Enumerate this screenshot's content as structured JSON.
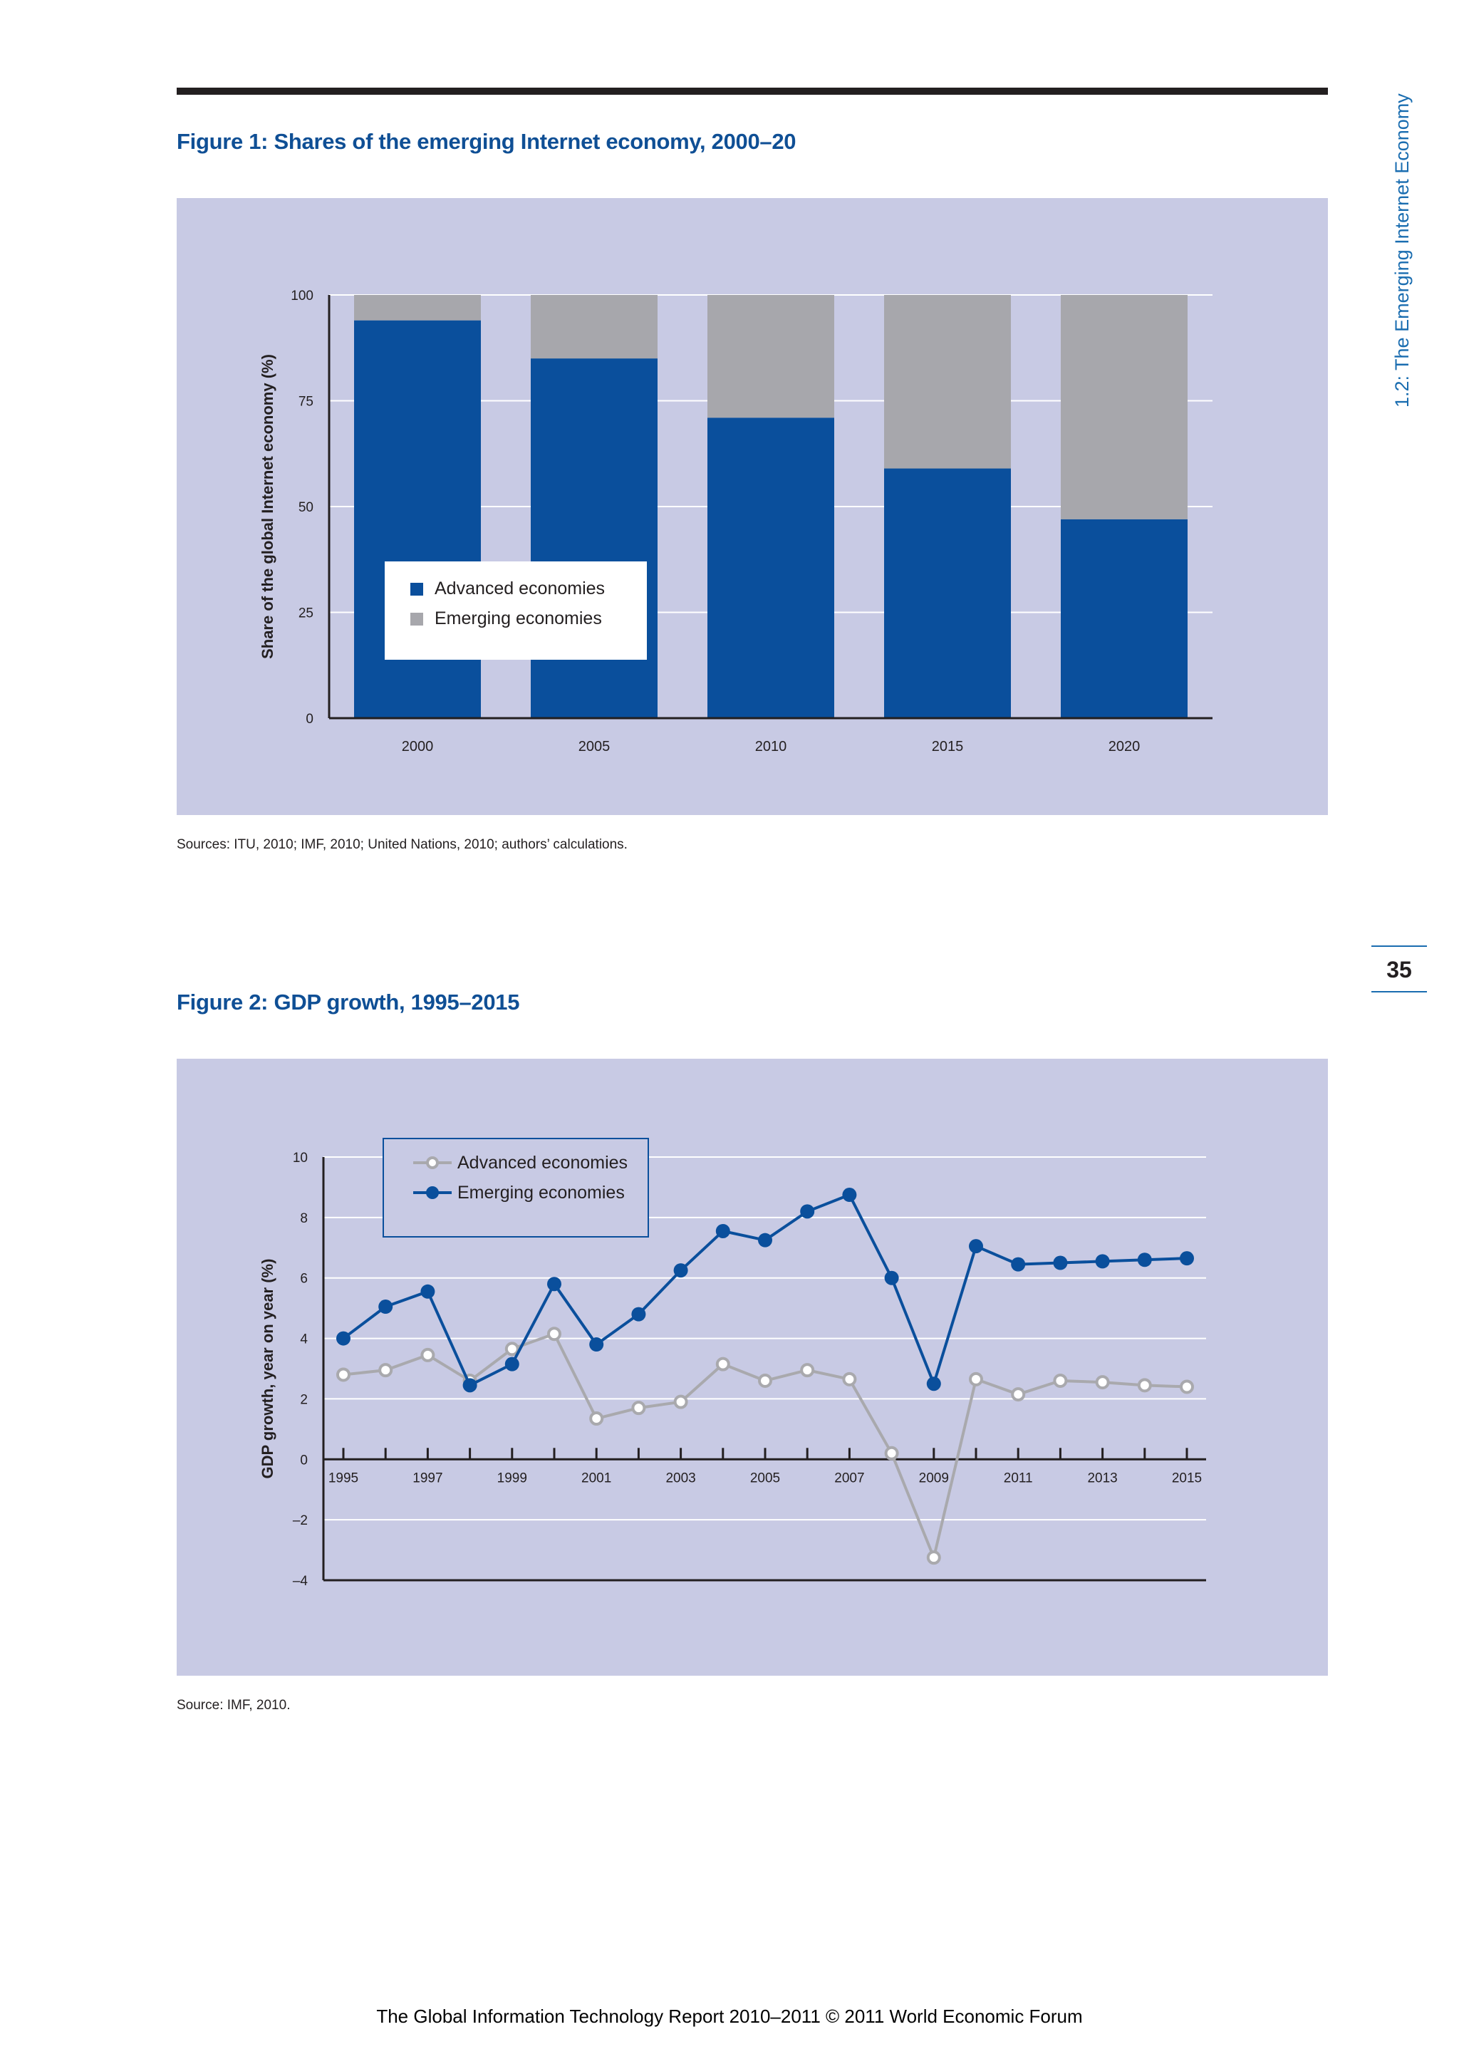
{
  "page": {
    "side_label": "1.2: The Emerging Internet Economy",
    "page_number": "35",
    "footer": "The Global Information Technology Report 2010–2011 © 2011 World Economic Forum"
  },
  "figure1": {
    "title": "Figure 1: Shares of the emerging Internet economy, 2000–20",
    "source": "Sources: ITU, 2010; IMF, 2010; United Nations, 2010; authors’ calculations."
  },
  "figure2": {
    "title": "Figure 2: GDP growth, 1995–2015",
    "source": "Source: IMF, 2010."
  },
  "chart_data": [
    {
      "type": "bar",
      "stacked": true,
      "categories": [
        "2000",
        "2005",
        "2010",
        "2015",
        "2020"
      ],
      "series": [
        {
          "name": "Advanced economies",
          "values": [
            94,
            85,
            71,
            59,
            47
          ],
          "color": "#0a4f9c"
        },
        {
          "name": "Emerging economies",
          "values": [
            6,
            15,
            29,
            41,
            53
          ],
          "color": "#a7a7ac"
        }
      ],
      "ylabel": "Share of the global Internet economy (%)",
      "xlabel": "",
      "ylim": [
        0,
        100
      ],
      "yticks": [
        "0",
        "25",
        "50",
        "75",
        "100"
      ],
      "grid": true,
      "legend": "lower-left inside plot"
    },
    {
      "type": "line",
      "x": [
        "1995",
        "1996",
        "1997",
        "1998",
        "1999",
        "2000",
        "2001",
        "2002",
        "2003",
        "2004",
        "2005",
        "2006",
        "2007",
        "2008",
        "2009",
        "2010",
        "2011",
        "2012",
        "2013",
        "2014",
        "2015"
      ],
      "xtick_labels": [
        "1995",
        "1997",
        "1999",
        "2001",
        "2003",
        "2005",
        "2007",
        "2009",
        "2011",
        "2013",
        "2015"
      ],
      "series": [
        {
          "name": "Advanced economies",
          "marker": "open-circle",
          "color": "#a9a9ad",
          "values": [
            2.8,
            2.95,
            3.45,
            2.6,
            3.65,
            4.15,
            1.35,
            1.7,
            1.9,
            3.15,
            2.6,
            2.95,
            2.65,
            0.2,
            -3.25,
            2.65,
            2.15,
            2.6,
            2.55,
            2.45,
            2.4
          ]
        },
        {
          "name": "Emerging economies",
          "marker": "filled-circle",
          "color": "#0a4f9c",
          "values": [
            4.0,
            5.05,
            5.55,
            2.45,
            3.15,
            5.8,
            3.8,
            4.8,
            6.25,
            7.55,
            7.25,
            8.2,
            8.75,
            6.0,
            2.5,
            7.05,
            6.45,
            6.5,
            6.55,
            6.6,
            6.65
          ]
        }
      ],
      "ylabel": "GDP growth, year on year (%)",
      "xlabel": "",
      "ylim": [
        -4,
        10
      ],
      "yticks": [
        "–4",
        "–2",
        "0",
        "2",
        "4",
        "6",
        "8",
        "10"
      ],
      "grid": true,
      "legend": "top-left inside plot"
    }
  ]
}
